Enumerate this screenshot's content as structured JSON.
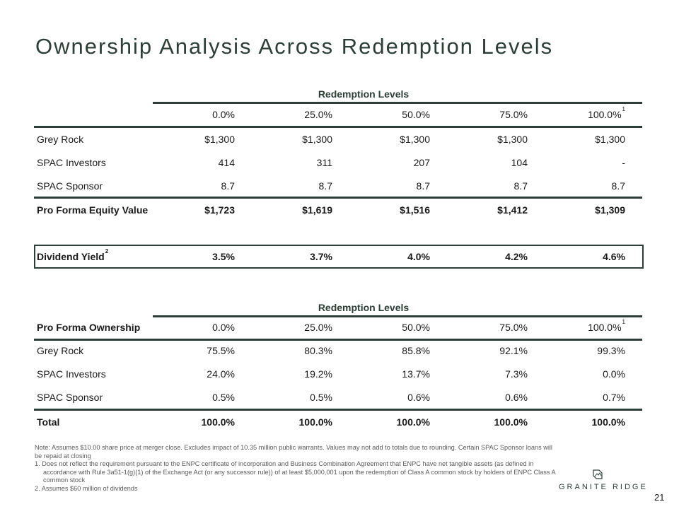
{
  "title": "Ownership Analysis Across Redemption Levels",
  "table1": {
    "group_header": "Redemption Levels",
    "columns": [
      "0.0%",
      "25.0%",
      "50.0%",
      "75.0%",
      "100.0%"
    ],
    "last_col_sup": "1",
    "rows": [
      {
        "label": "Grey Rock",
        "values": [
          "$1,300",
          "$1,300",
          "$1,300",
          "$1,300",
          "$1,300"
        ]
      },
      {
        "label": "SPAC Investors",
        "values": [
          "414",
          "311",
          "207",
          "104",
          "-"
        ]
      },
      {
        "label": "SPAC Sponsor",
        "values": [
          "8.7",
          "8.7",
          "8.7",
          "8.7",
          "8.7"
        ]
      }
    ],
    "total": {
      "label": "Pro Forma Equity Value",
      "values": [
        "$1,723",
        "$1,619",
        "$1,516",
        "$1,412",
        "$1,309"
      ]
    }
  },
  "dividend": {
    "label": "Dividend Yield",
    "sup": "2",
    "values": [
      "3.5%",
      "3.7%",
      "4.0%",
      "4.2%",
      "4.6%"
    ]
  },
  "table2": {
    "group_header": "Redemption Levels",
    "row_header": "Pro Forma Ownership",
    "columns": [
      "0.0%",
      "25.0%",
      "50.0%",
      "75.0%",
      "100.0%"
    ],
    "last_col_sup": "1",
    "rows": [
      {
        "label": "Grey Rock",
        "values": [
          "75.5%",
          "80.3%",
          "85.8%",
          "92.1%",
          "99.3%"
        ]
      },
      {
        "label": "SPAC Investors",
        "values": [
          "24.0%",
          "19.2%",
          "13.7%",
          "7.3%",
          "0.0%"
        ]
      },
      {
        "label": "SPAC Sponsor",
        "values": [
          "0.5%",
          "0.5%",
          "0.6%",
          "0.6%",
          "0.7%"
        ]
      }
    ],
    "total": {
      "label": "Total",
      "values": [
        "100.0%",
        "100.0%",
        "100.0%",
        "100.0%",
        "100.0%"
      ]
    }
  },
  "notes": {
    "note": "Note: Assumes $10.00 share price at merger close. Excludes impact of 10.35 million public warrants. Values may not add to totals due to rounding. Certain SPAC Sponsor loans will be repaid at closing",
    "fn1": "1.  Does not reflect the requirement pursuant to the ENPC certificate of incorporation and Business Combination Agreement that ENPC have net tangible assets (as defined in accordance with Rule 3a51-1(g)(1) of the Exchange Act (or any successor rule)) of at least $5,000,001 upon the redemption of Class A common stock by holders of ENPC Class A common stock",
    "fn2": "2.  Assumes $60 million of dividends"
  },
  "logo": {
    "text": "GRANITE RIDGE",
    "icon": "mountain-logo-icon"
  },
  "page_number": "21",
  "colors": {
    "accent": "#2c3e36"
  }
}
